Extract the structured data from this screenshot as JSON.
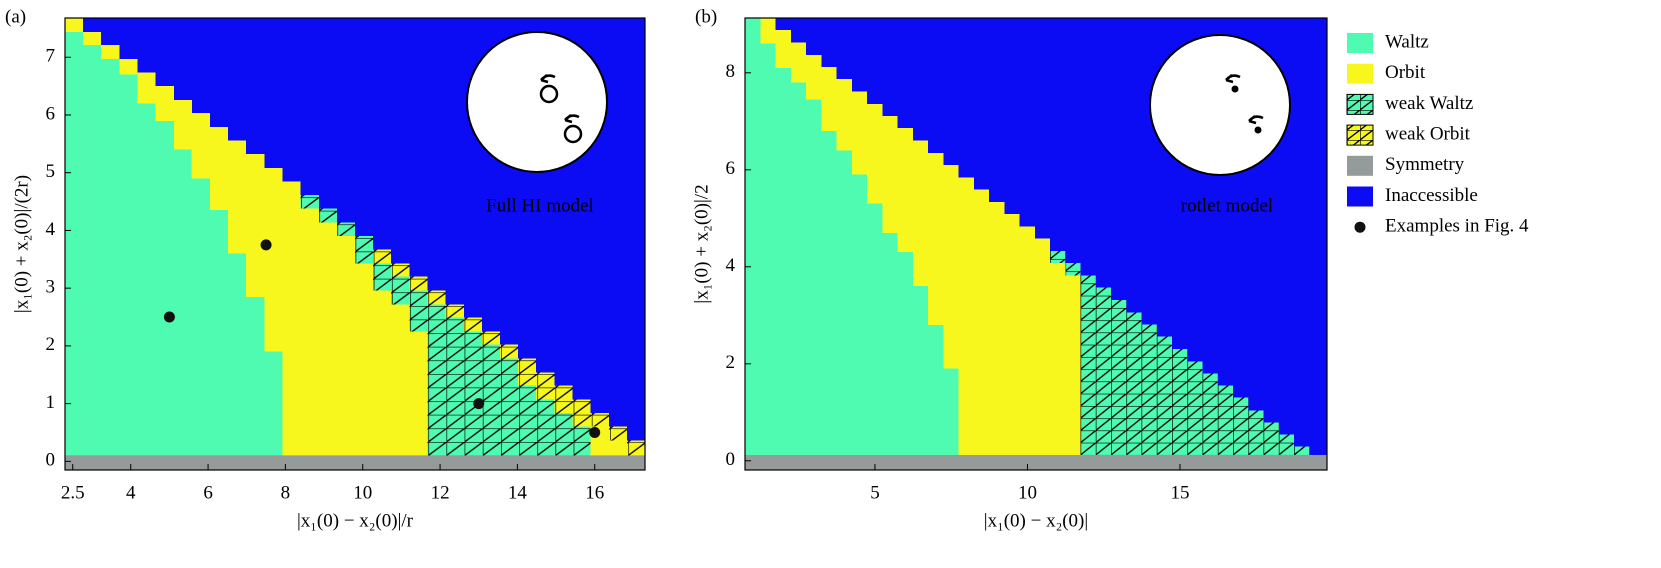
{
  "legend": {
    "position": "right",
    "items": [
      {
        "name": "Waltz",
        "color": "#4ffbb0",
        "hatch": false
      },
      {
        "name": "Orbit",
        "color": "#f7f71e",
        "hatch": false
      },
      {
        "name": "weak Waltz",
        "color": "#4ffbb0",
        "hatch": true
      },
      {
        "name": "weak Orbit",
        "color": "#f7f71e",
        "hatch": true
      },
      {
        "name": "Symmetry",
        "color": "#959b9b",
        "hatch": false
      },
      {
        "name": "Inaccessible",
        "color": "#0c0cf4",
        "hatch": false
      },
      {
        "name": "Examples in Fig. 4",
        "color": "#111111",
        "marker": "dot"
      }
    ]
  },
  "chart_data": [
    {
      "type": "heatmap",
      "label": "(a)",
      "annotation": "Full HI model",
      "xlabel": "|x₁(0) − x₂(0)|/r",
      "ylabel": "|x₁(0) + x₂(0)|/(2r)",
      "xlim": [
        2.3,
        17.3
      ],
      "ylim": [
        -0.15,
        7.68
      ],
      "xticks": [
        2.5,
        4,
        6,
        8,
        10,
        12,
        14,
        16
      ],
      "yticks": [
        0,
        1,
        2,
        3,
        4,
        5,
        6,
        7
      ],
      "symmetry_top": 0.1,
      "columns": [
        {
          "x": 2.53,
          "runs": [
            [
              0,
              7.44
            ],
            [
              1,
              7.68
            ]
          ]
        },
        {
          "x": 3.0,
          "runs": [
            [
              0,
              7.21
            ],
            [
              1,
              7.44
            ]
          ]
        },
        {
          "x": 3.47,
          "runs": [
            [
              0,
              6.97
            ],
            [
              1,
              7.21
            ]
          ]
        },
        {
          "x": 3.94,
          "runs": [
            [
              0,
              6.7
            ],
            [
              1,
              6.97
            ]
          ]
        },
        {
          "x": 4.41,
          "runs": [
            [
              0,
              6.2
            ],
            [
              1,
              6.74
            ]
          ]
        },
        {
          "x": 4.88,
          "runs": [
            [
              0,
              5.9
            ],
            [
              1,
              6.5
            ]
          ]
        },
        {
          "x": 5.35,
          "runs": [
            [
              0,
              5.4
            ],
            [
              1,
              6.26
            ]
          ]
        },
        {
          "x": 5.81,
          "runs": [
            [
              0,
              4.9
            ],
            [
              1,
              6.03
            ]
          ]
        },
        {
          "x": 6.28,
          "runs": [
            [
              0,
              4.35
            ],
            [
              1,
              5.79
            ]
          ]
        },
        {
          "x": 6.75,
          "runs": [
            [
              0,
              3.6
            ],
            [
              1,
              5.56
            ]
          ]
        },
        {
          "x": 7.22,
          "runs": [
            [
              0,
              2.85
            ],
            [
              1,
              5.32
            ]
          ]
        },
        {
          "x": 7.69,
          "runs": [
            [
              0,
              1.9
            ],
            [
              1,
              5.08
            ]
          ]
        },
        {
          "x": 8.16,
          "runs": [
            [
              1,
              4.85
            ]
          ]
        },
        {
          "x": 8.63,
          "runs": [
            [
              1,
              4.38
            ],
            [
              2,
              4.61
            ]
          ]
        },
        {
          "x": 9.1,
          "runs": [
            [
              1,
              4.14
            ],
            [
              2,
              4.38
            ]
          ]
        },
        {
          "x": 9.57,
          "runs": [
            [
              1,
              3.9
            ],
            [
              2,
              4.14
            ]
          ]
        },
        {
          "x": 10.03,
          "runs": [
            [
              1,
              3.43
            ],
            [
              2,
              3.9
            ]
          ]
        },
        {
          "x": 10.5,
          "runs": [
            [
              1,
              2.96
            ],
            [
              2,
              3.43
            ],
            [
              3,
              3.67
            ]
          ]
        },
        {
          "x": 10.97,
          "runs": [
            [
              1,
              2.72
            ],
            [
              2,
              3.2
            ],
            [
              3,
              3.43
            ]
          ]
        },
        {
          "x": 11.44,
          "runs": [
            [
              1,
              2.25
            ],
            [
              2,
              2.96
            ],
            [
              3,
              3.2
            ]
          ]
        },
        {
          "x": 11.91,
          "runs": [
            [
              2,
              2.72
            ],
            [
              3,
              2.96
            ]
          ]
        },
        {
          "x": 12.38,
          "runs": [
            [
              2,
              2.49
            ],
            [
              3,
              2.72
            ]
          ]
        },
        {
          "x": 12.85,
          "runs": [
            [
              2,
              2.25
            ],
            [
              3,
              2.49
            ]
          ]
        },
        {
          "x": 13.32,
          "runs": [
            [
              2,
              2.02
            ],
            [
              3,
              2.25
            ]
          ]
        },
        {
          "x": 13.78,
          "runs": [
            [
              2,
              1.78
            ],
            [
              3,
              2.02
            ]
          ]
        },
        {
          "x": 14.25,
          "runs": [
            [
              2,
              1.31
            ],
            [
              3,
              1.78
            ]
          ]
        },
        {
          "x": 14.72,
          "runs": [
            [
              2,
              1.07
            ],
            [
              3,
              1.54
            ]
          ]
        },
        {
          "x": 15.19,
          "runs": [
            [
              2,
              0.84
            ],
            [
              3,
              1.31
            ]
          ]
        },
        {
          "x": 15.66,
          "runs": [
            [
              2,
              0.6
            ],
            [
              3,
              1.07
            ]
          ]
        },
        {
          "x": 16.13,
          "runs": [
            [
              1,
              0.6
            ],
            [
              3,
              0.84
            ]
          ]
        },
        {
          "x": 16.6,
          "runs": [
            [
              1,
              0.36
            ],
            [
              3,
              0.6
            ]
          ]
        },
        {
          "x": 17.07,
          "runs": [
            [
              3,
              0.36
            ]
          ]
        }
      ],
      "points": {
        "x": [
          5,
          7.5,
          13,
          16
        ],
        "y": [
          2.5,
          3.75,
          1,
          0.5
        ]
      }
    },
    {
      "type": "heatmap",
      "label": "(b)",
      "annotation": "rotlet model",
      "xlabel": "|x₁(0) − x₂(0)|",
      "ylabel": "|x₁(0) + x₂(0)|/2",
      "xlim": [
        0.74,
        19.82
      ],
      "ylim": [
        -0.19,
        9.13
      ],
      "xticks": [
        5,
        10,
        15
      ],
      "yticks": [
        0,
        2,
        4,
        6,
        8
      ],
      "symmetry_top": 0.12,
      "columns": [
        {
          "x": 0.99,
          "runs": [
            [
              0,
              9.13
            ]
          ]
        },
        {
          "x": 1.49,
          "runs": [
            [
              0,
              8.6
            ],
            [
              1,
              9.13
            ]
          ]
        },
        {
          "x": 1.99,
          "runs": [
            [
              0,
              8.1
            ],
            [
              1,
              8.88
            ]
          ]
        },
        {
          "x": 2.49,
          "runs": [
            [
              0,
              7.8
            ],
            [
              1,
              8.62
            ]
          ]
        },
        {
          "x": 2.99,
          "runs": [
            [
              0,
              7.45
            ],
            [
              1,
              8.37
            ]
          ]
        },
        {
          "x": 3.49,
          "runs": [
            [
              0,
              6.8
            ],
            [
              1,
              8.12
            ]
          ]
        },
        {
          "x": 3.99,
          "runs": [
            [
              0,
              6.4
            ],
            [
              1,
              7.87
            ]
          ]
        },
        {
          "x": 4.49,
          "runs": [
            [
              0,
              5.9
            ],
            [
              1,
              7.61
            ]
          ]
        },
        {
          "x": 4.99,
          "runs": [
            [
              0,
              5.3
            ],
            [
              1,
              7.36
            ]
          ]
        },
        {
          "x": 5.49,
          "runs": [
            [
              0,
              4.7
            ],
            [
              1,
              7.11
            ]
          ]
        },
        {
          "x": 5.99,
          "runs": [
            [
              0,
              4.3
            ],
            [
              1,
              6.86
            ]
          ]
        },
        {
          "x": 6.49,
          "runs": [
            [
              0,
              3.6
            ],
            [
              1,
              6.6
            ]
          ]
        },
        {
          "x": 6.99,
          "runs": [
            [
              0,
              2.8
            ],
            [
              1,
              6.35
            ]
          ]
        },
        {
          "x": 7.49,
          "runs": [
            [
              0,
              1.9
            ],
            [
              1,
              6.1
            ]
          ]
        },
        {
          "x": 7.99,
          "runs": [
            [
              1,
              5.84
            ]
          ]
        },
        {
          "x": 8.49,
          "runs": [
            [
              1,
              5.59
            ]
          ]
        },
        {
          "x": 8.99,
          "runs": [
            [
              1,
              5.34
            ]
          ]
        },
        {
          "x": 9.49,
          "runs": [
            [
              1,
              5.09
            ]
          ]
        },
        {
          "x": 9.99,
          "runs": [
            [
              1,
              4.83
            ]
          ]
        },
        {
          "x": 10.49,
          "runs": [
            [
              1,
              4.58
            ]
          ]
        },
        {
          "x": 10.99,
          "runs": [
            [
              1,
              4.08
            ],
            [
              2,
              4.33
            ]
          ]
        },
        {
          "x": 11.49,
          "runs": [
            [
              1,
              3.82
            ],
            [
              2,
              4.08
            ]
          ]
        },
        {
          "x": 11.99,
          "runs": [
            [
              2,
              3.82
            ]
          ]
        },
        {
          "x": 12.49,
          "runs": [
            [
              2,
              3.57
            ]
          ]
        },
        {
          "x": 12.99,
          "runs": [
            [
              2,
              3.32
            ]
          ]
        },
        {
          "x": 13.49,
          "runs": [
            [
              2,
              3.06
            ]
          ]
        },
        {
          "x": 13.99,
          "runs": [
            [
              2,
              2.81
            ]
          ]
        },
        {
          "x": 14.49,
          "runs": [
            [
              2,
              2.56
            ]
          ]
        },
        {
          "x": 14.99,
          "runs": [
            [
              2,
              2.31
            ]
          ]
        },
        {
          "x": 15.49,
          "runs": [
            [
              2,
              2.05
            ]
          ]
        },
        {
          "x": 15.99,
          "runs": [
            [
              2,
              1.8
            ]
          ]
        },
        {
          "x": 16.49,
          "runs": [
            [
              2,
              1.55
            ]
          ]
        },
        {
          "x": 16.99,
          "runs": [
            [
              2,
              1.3
            ]
          ]
        },
        {
          "x": 17.49,
          "runs": [
            [
              2,
              1.04
            ]
          ]
        },
        {
          "x": 17.99,
          "runs": [
            [
              2,
              0.79
            ]
          ]
        },
        {
          "x": 18.49,
          "runs": [
            [
              2,
              0.54
            ]
          ]
        },
        {
          "x": 18.99,
          "runs": [
            [
              2,
              0.29
            ]
          ]
        }
      ]
    }
  ]
}
